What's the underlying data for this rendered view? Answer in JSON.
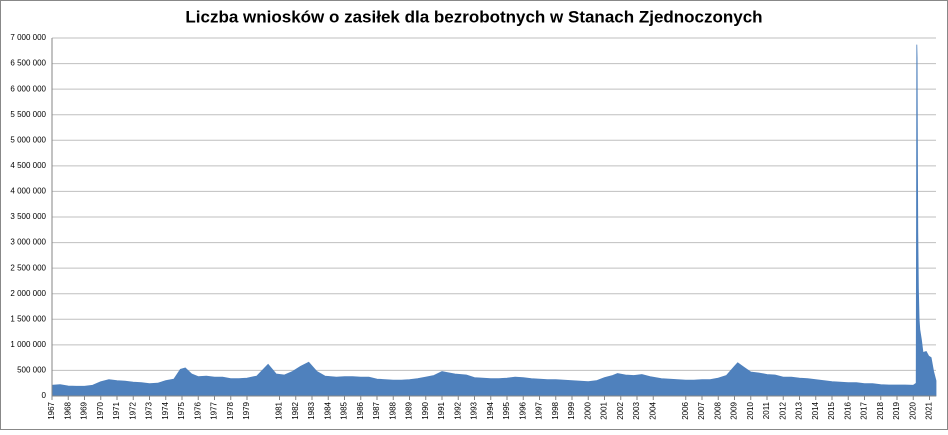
{
  "chart_data": {
    "type": "area",
    "title": "Liczba wniosków o zasiłek dla bezrobotnych w Stanach Zjednoczonych",
    "color": "#4f81bd",
    "grid": true,
    "x": [
      1967,
      1967.5,
      1968,
      1968.5,
      1969,
      1969.5,
      1970,
      1970.5,
      1971,
      1971.5,
      1972,
      1972.5,
      1973,
      1973.5,
      1974,
      1974.5,
      1974.9,
      1975.2,
      1975.6,
      1976,
      1976.5,
      1977,
      1977.5,
      1978,
      1978.5,
      1979,
      1979.6,
      1980.3,
      1980.8,
      1981.3,
      1981.8,
      1982.3,
      1982.8,
      1983.3,
      1983.8,
      1984.5,
      1985,
      1985.5,
      1986,
      1986.5,
      1987,
      1987.5,
      1988,
      1988.5,
      1989,
      1989.5,
      1990,
      1990.5,
      1991,
      1991.3,
      1991.8,
      1992.5,
      1993,
      1993.5,
      1994,
      1994.5,
      1995,
      1995.5,
      1996,
      1996.5,
      1997,
      1997.5,
      1998,
      1998.5,
      1999,
      1999.5,
      2000,
      2000.5,
      2001,
      2001.5,
      2001.8,
      2002.3,
      2002.8,
      2003.3,
      2003.8,
      2004.5,
      2005,
      2005.5,
      2006,
      2006.5,
      2007,
      2007.5,
      2008,
      2008.5,
      2009,
      2009.2,
      2009.6,
      2010,
      2010.5,
      2011,
      2011.5,
      2012,
      2012.5,
      2013,
      2013.5,
      2014,
      2014.5,
      2015,
      2015.5,
      2016,
      2016.5,
      2017,
      2017.5,
      2018,
      2018.5,
      2019,
      2019.5,
      2020,
      2020.18,
      2020.2,
      2020.22,
      2020.24,
      2020.26,
      2020.28,
      2020.32,
      2020.36,
      2020.4,
      2020.5,
      2020.6,
      2020.8,
      2020.95,
      2021.1,
      2021.25,
      2021.4
    ],
    "values": [
      210000,
      220000,
      195000,
      190000,
      190000,
      210000,
      280000,
      320000,
      300000,
      290000,
      270000,
      260000,
      240000,
      250000,
      300000,
      330000,
      520000,
      550000,
      430000,
      380000,
      390000,
      370000,
      370000,
      340000,
      340000,
      350000,
      390000,
      620000,
      430000,
      410000,
      480000,
      580000,
      660000,
      480000,
      390000,
      370000,
      380000,
      380000,
      370000,
      370000,
      330000,
      320000,
      310000,
      310000,
      320000,
      340000,
      370000,
      400000,
      480000,
      460000,
      430000,
      410000,
      360000,
      350000,
      340000,
      340000,
      350000,
      370000,
      360000,
      340000,
      330000,
      320000,
      320000,
      310000,
      300000,
      290000,
      280000,
      300000,
      360000,
      400000,
      440000,
      410000,
      400000,
      420000,
      380000,
      340000,
      330000,
      320000,
      310000,
      310000,
      320000,
      320000,
      350000,
      400000,
      580000,
      650000,
      560000,
      470000,
      450000,
      420000,
      410000,
      370000,
      370000,
      350000,
      340000,
      320000,
      300000,
      280000,
      270000,
      260000,
      260000,
      240000,
      240000,
      220000,
      215000,
      215000,
      215000,
      210000,
      250000,
      3300000,
      6870000,
      6600000,
      4400000,
      3200000,
      2100000,
      1500000,
      1300000,
      1100000,
      850000,
      870000,
      780000,
      750000,
      480000,
      300000
    ],
    "xlim": [
      1967,
      2021.4
    ],
    "xticks": [
      1967,
      1968,
      1969,
      1970,
      1971,
      1972,
      1973,
      1974,
      1975,
      1976,
      1977,
      1978,
      1979,
      1981,
      1982,
      1983,
      1984,
      1985,
      1986,
      1987,
      1988,
      1989,
      1990,
      1991,
      1992,
      1993,
      1994,
      1995,
      1996,
      1997,
      1998,
      1999,
      2000,
      2001,
      2002,
      2003,
      2004,
      2006,
      2007,
      2008,
      2009,
      2010,
      2011,
      2012,
      2013,
      2014,
      2015,
      2016,
      2017,
      2018,
      2019,
      2020,
      2021
    ],
    "ylim": [
      0,
      7000000
    ],
    "yticks": [
      0,
      {
        "value": 500000,
        "label": "500 000"
      },
      {
        "value": 1000000,
        "label": "1 000 000"
      },
      {
        "value": 1500000,
        "label": "1 500 000"
      },
      {
        "value": 2000000,
        "label": "2 000 000"
      },
      {
        "value": 2500000,
        "label": "2 500 000"
      },
      {
        "value": 3000000,
        "label": "3 000 000"
      },
      {
        "value": 3500000,
        "label": "3 500 000"
      },
      {
        "value": 4000000,
        "label": "4 000 000"
      },
      {
        "value": 4500000,
        "label": "4 500 000"
      },
      {
        "value": 5000000,
        "label": "5 000 000"
      },
      {
        "value": 5500000,
        "label": "5 500 000"
      },
      {
        "value": 6000000,
        "label": "6 000 000"
      },
      {
        "value": 6500000,
        "label": "6 500 000"
      },
      {
        "value": 7000000,
        "label": "7 000 000"
      }
    ]
  }
}
